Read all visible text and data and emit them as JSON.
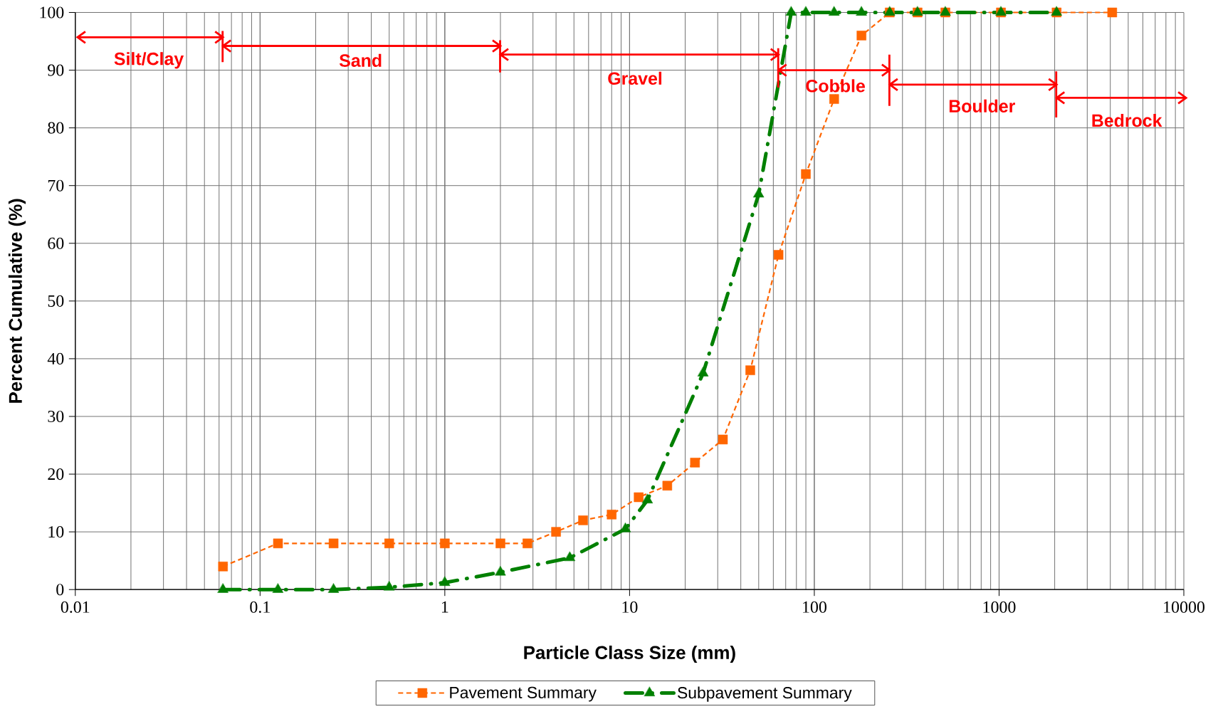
{
  "chart_data": {
    "type": "line",
    "xlabel": "Particle Class Size (mm)",
    "ylabel": "Percent Cumulative (%)",
    "log": "x",
    "xlim": [
      0.01,
      10000
    ],
    "xticks": [
      0.01,
      0.1,
      1,
      10,
      100,
      1000,
      10000
    ],
    "ylim": [
      0,
      100
    ],
    "yticks": [
      0,
      10,
      20,
      30,
      40,
      50,
      60,
      70,
      80,
      90,
      100
    ],
    "grid": true,
    "legend": "bottom",
    "series": [
      {
        "name": "Pavement Summary",
        "color": "#ff6600",
        "marker": "square",
        "line_style": "dashed",
        "x": [
          0.063,
          0.125,
          0.25,
          0.5,
          1,
          2,
          2.8,
          4,
          5.6,
          8,
          11.2,
          16,
          22.6,
          32,
          45,
          64,
          90,
          128,
          180,
          256,
          362,
          512,
          1024,
          2048,
          4096
        ],
        "values": [
          4,
          8,
          8,
          8,
          8,
          8,
          8,
          10,
          12,
          13,
          16,
          18,
          22,
          26,
          38,
          58,
          72,
          85,
          96,
          100,
          100,
          100,
          100,
          100,
          100
        ]
      },
      {
        "name": "Subpavement Summary",
        "color": "#008000",
        "marker": "triangle",
        "line_style": "dashdot",
        "x": [
          0.063,
          0.125,
          0.25,
          0.5,
          1,
          2,
          4.75,
          9.5,
          12.5,
          25,
          50,
          75,
          90,
          128,
          180,
          256,
          362,
          512,
          1024,
          2048
        ],
        "values": [
          0,
          0,
          0,
          0.4,
          1.2,
          3,
          5.5,
          10.5,
          15.5,
          37.5,
          68.5,
          100,
          100,
          100,
          100,
          100,
          100,
          100,
          100,
          100
        ]
      }
    ],
    "annotations": [
      "Silt/Clay",
      "Sand",
      "Gravel",
      "Cobble",
      "Boulder",
      "Bedrock"
    ]
  }
}
